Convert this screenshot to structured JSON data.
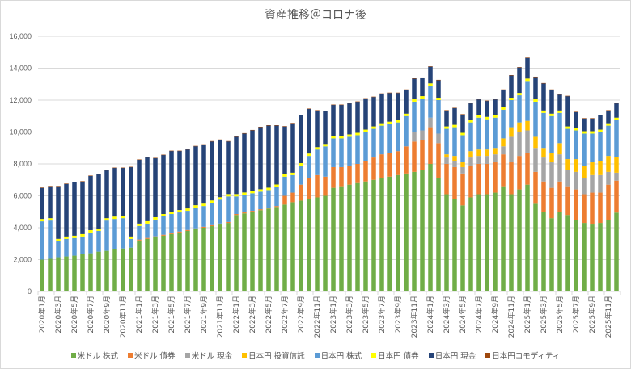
{
  "chart_data": {
    "type": "bar",
    "stacked": true,
    "title": "資産推移＠コロナ後",
    "xlabel": "",
    "ylabel": "",
    "ylim": [
      0,
      16000
    ],
    "yticks": [
      0,
      2000,
      4000,
      6000,
      8000,
      10000,
      12000,
      14000,
      16000
    ],
    "ytick_labels": [
      "0",
      "2,000",
      "4,000",
      "6,000",
      "8,000",
      "10,000",
      "12,000",
      "14,000",
      "16,000"
    ],
    "grid": true,
    "legend_position": "bottom",
    "categories": [
      "2020年1月",
      "2020年2月",
      "2020年3月",
      "2020年4月",
      "2020年5月",
      "2020年6月",
      "2020年7月",
      "2020年8月",
      "2020年9月",
      "2020年10月",
      "2020年11月",
      "2020年12月",
      "2021年1月",
      "2021年2月",
      "2021年3月",
      "2021年4月",
      "2021年5月",
      "2021年6月",
      "2021年7月",
      "2021年8月",
      "2021年9月",
      "2021年10月",
      "2021年11月",
      "2021年12月",
      "2022年1月",
      "2022年2月",
      "2022年3月",
      "2022年4月",
      "2022年5月",
      "2022年6月",
      "2022年7月",
      "2022年8月",
      "2022年9月",
      "2022年10月",
      "2022年11月",
      "2022年12月",
      "2023年1月",
      "2023年2月",
      "2023年3月",
      "2023年4月",
      "2023年5月",
      "2023年6月",
      "2023年7月",
      "2023年8月",
      "2023年9月",
      "2023年10月",
      "2023年11月",
      "2023年12月",
      "2024年1月",
      "2024年2月",
      "2024年3月",
      "2024年4月",
      "2024年5月",
      "2024年6月",
      "2024年7月",
      "2024年8月",
      "2024年9月",
      "2024年10月",
      "2024年11月",
      "2024年12月",
      "2025年1月",
      "2025年2月",
      "2025年3月",
      "2025年4月",
      "2025年5月",
      "2025年6月",
      "2025年7月",
      "2025年8月",
      "2025年9月",
      "2025年10月",
      "2025年11月",
      "2025年12月"
    ],
    "series": [
      {
        "name": "米ドル 株式",
        "color": "#70ad47",
        "values": [
          2000,
          2050,
          2150,
          2200,
          2250,
          2350,
          2400,
          2500,
          2550,
          2650,
          2700,
          2750,
          3200,
          3300,
          3400,
          3500,
          3600,
          3700,
          3800,
          3900,
          4000,
          4100,
          4200,
          4300,
          4800,
          4900,
          5000,
          5100,
          5200,
          5300,
          5450,
          5600,
          5700,
          5800,
          5900,
          6000,
          6500,
          6600,
          6700,
          6800,
          6900,
          7000,
          7100,
          7200,
          7300,
          7400,
          7500,
          7600,
          8000,
          7100,
          6100,
          5800,
          5400,
          5900,
          6100,
          6100,
          6200,
          6600,
          6100,
          6400,
          6700,
          5500,
          5000,
          4600,
          5000,
          4800,
          4500,
          4300,
          4200,
          4300,
          4500,
          4950
        ]
      },
      {
        "name": "米ドル 債券",
        "color": "#ed7d31",
        "values": [
          0,
          0,
          0,
          0,
          0,
          0,
          0,
          0,
          0,
          0,
          0,
          0,
          60,
          60,
          60,
          60,
          60,
          60,
          60,
          60,
          60,
          60,
          60,
          60,
          60,
          60,
          60,
          60,
          60,
          60,
          550,
          600,
          1000,
          1300,
          1400,
          1200,
          1300,
          1200,
          1200,
          1200,
          1300,
          1400,
          1500,
          1500,
          1500,
          1700,
          1900,
          1900,
          2300,
          2200,
          1900,
          2000,
          2000,
          2000,
          1900,
          1900,
          1900,
          2000,
          2000,
          2100,
          2000,
          2000,
          1900,
          1900,
          1900,
          1800,
          1900,
          1800,
          2000,
          1900,
          2200,
          2000
        ]
      },
      {
        "name": "米ドル 現金",
        "color": "#a5a5a5",
        "values": [
          0,
          0,
          0,
          0,
          0,
          0,
          0,
          0,
          0,
          0,
          0,
          0,
          0,
          0,
          0,
          0,
          0,
          0,
          0,
          0,
          0,
          0,
          0,
          0,
          0,
          0,
          0,
          0,
          0,
          0,
          0,
          0,
          0,
          0,
          0,
          0,
          0,
          0,
          0,
          0,
          0,
          0,
          0,
          0,
          0,
          0,
          600,
          600,
          600,
          600,
          400,
          400,
          400,
          500,
          500,
          500,
          500,
          500,
          1600,
          1500,
          1400,
          1500,
          1500,
          1600,
          1700,
          1000,
          1100,
          1000,
          1100,
          1100,
          800,
          500
        ]
      },
      {
        "name": "日本円 投資信託",
        "color": "#ffc000",
        "values": [
          0,
          0,
          0,
          0,
          0,
          0,
          0,
          0,
          0,
          0,
          0,
          0,
          0,
          0,
          0,
          0,
          0,
          0,
          0,
          0,
          0,
          0,
          0,
          0,
          0,
          0,
          0,
          0,
          0,
          0,
          0,
          0,
          0,
          0,
          0,
          0,
          0,
          0,
          0,
          0,
          0,
          0,
          0,
          0,
          0,
          0,
          0,
          0,
          0,
          0,
          200,
          300,
          300,
          400,
          400,
          400,
          400,
          500,
          600,
          600,
          600,
          700,
          600,
          600,
          700,
          700,
          800,
          800,
          800,
          900,
          1000,
          1000
        ]
      },
      {
        "name": "日本円 株式",
        "color": "#5b9bd5",
        "values": [
          2400,
          2400,
          1000,
          1100,
          1100,
          1100,
          1300,
          1300,
          1900,
          1900,
          1900,
          550,
          850,
          900,
          1050,
          1150,
          1200,
          1200,
          1200,
          1300,
          1300,
          1400,
          1500,
          1600,
          1100,
          1100,
          1100,
          1100,
          1100,
          1200,
          1200,
          1100,
          1200,
          1400,
          1600,
          1900,
          1800,
          1800,
          1800,
          1800,
          1800,
          1800,
          1800,
          1800,
          1800,
          1900,
          1900,
          2000,
          2000,
          2100,
          1600,
          1800,
          1700,
          1800,
          2000,
          1900,
          1900,
          1800,
          1700,
          1700,
          2500,
          2200,
          2200,
          2300,
          1900,
          1900,
          1800,
          2000,
          1800,
          1800,
          1900,
          2300
        ]
      },
      {
        "name": "日本円 債券",
        "color": "#ffff00",
        "values": [
          150,
          150,
          150,
          150,
          150,
          150,
          150,
          150,
          150,
          150,
          150,
          150,
          150,
          150,
          150,
          150,
          150,
          150,
          150,
          150,
          150,
          150,
          150,
          150,
          150,
          150,
          150,
          150,
          150,
          150,
          150,
          150,
          150,
          150,
          150,
          150,
          150,
          150,
          150,
          150,
          150,
          150,
          150,
          150,
          150,
          150,
          150,
          150,
          150,
          150,
          150,
          150,
          150,
          150,
          150,
          150,
          150,
          150,
          150,
          150,
          150,
          150,
          150,
          150,
          150,
          150,
          150,
          150,
          150,
          150,
          150,
          150
        ]
      },
      {
        "name": "日本円 現金",
        "color": "#264478",
        "values": [
          1950,
          2000,
          3300,
          3300,
          3350,
          3300,
          3400,
          3400,
          3000,
          3050,
          3000,
          4350,
          4000,
          4000,
          3700,
          3700,
          3800,
          3700,
          3700,
          3700,
          3700,
          3700,
          3600,
          3300,
          3600,
          3700,
          3800,
          3900,
          3900,
          3700,
          3000,
          3100,
          3000,
          2800,
          2300,
          2050,
          1950,
          1950,
          1950,
          1950,
          1950,
          1850,
          1850,
          1800,
          1700,
          1500,
          1300,
          1150,
          1050,
          1100,
          1000,
          1050,
          1150,
          1050,
          1000,
          1000,
          1000,
          1100,
          1400,
          1600,
          1300,
          1400,
          1700,
          1500,
          1000,
          1900,
          1000,
          800,
          800,
          900,
          800,
          900
        ]
      },
      {
        "name": "日本円コモディティ",
        "color": "#9e480e",
        "values": [
          20,
          20,
          20,
          20,
          20,
          20,
          20,
          20,
          20,
          20,
          20,
          20,
          20,
          20,
          20,
          20,
          20,
          20,
          20,
          20,
          20,
          20,
          20,
          20,
          20,
          20,
          20,
          20,
          20,
          20,
          20,
          20,
          20,
          20,
          20,
          20,
          20,
          20,
          20,
          20,
          20,
          20,
          20,
          20,
          20,
          20,
          20,
          20,
          20,
          20,
          20,
          20,
          20,
          20,
          20,
          20,
          20,
          20,
          20,
          20,
          20,
          20,
          20,
          20,
          20,
          20,
          20,
          20,
          20,
          20,
          20,
          20
        ]
      }
    ],
    "xtick_labels_shown": [
      "2020年1月",
      "2020年3月",
      "2020年5月",
      "2020年7月",
      "2020年9月",
      "2020年11月",
      "2021年1月",
      "2021年3月",
      "2021年5月",
      "2021年7月",
      "2021年9月",
      "2021年11月",
      "2022年1月",
      "2022年3月",
      "2022年5月",
      "2022年7月",
      "2022年9月",
      "2022年11月",
      "2023年1月",
      "2023年3月",
      "2023年5月",
      "2023年7月",
      "2023年9月",
      "2023年11月",
      "2024年1月",
      "2024年3月",
      "2024年5月",
      "2024年7月",
      "2024年9月",
      "2024年11月",
      "2025年1月",
      "2025年3月",
      "2025年5月",
      "2025年7月",
      "2025年9月",
      "2025年11月"
    ]
  }
}
